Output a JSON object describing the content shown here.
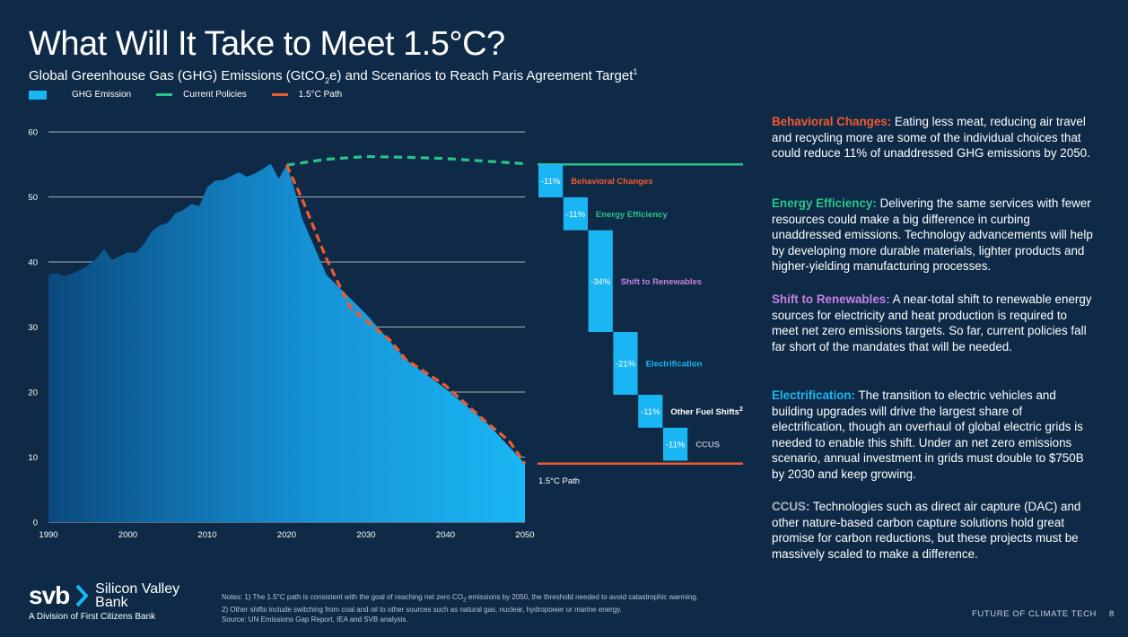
{
  "title": "What Will It Take to Meet 1.5°C?",
  "subtitle": {
    "pre": "Global Greenhouse Gas (GHG) Emissions (GtCO",
    "sub": "2",
    "post": "e) and Scenarios to Reach Paris Agreement Target",
    "sup": "1"
  },
  "legend": {
    "ghg": "GHG Emission",
    "current": "Current Policies",
    "path": "1.5°C Path"
  },
  "colors": {
    "background": "#0e2a47",
    "ghg_light": "#1ab6f4",
    "ghg_dark": "#0b4a7e",
    "current_policies": "#2ac48a",
    "path_15": "#f15a2e",
    "behavioral": "#f15a2e",
    "efficiency": "#2ac48a",
    "renewables": "#c880e0",
    "electrification": "#1ab6f4",
    "other": "#ffffff",
    "ccus": "#aab4c2"
  },
  "chart_data": {
    "type": "area",
    "xlim": [
      1990,
      2050
    ],
    "ylim": [
      0,
      60
    ],
    "x_ticks": [
      "1990",
      "2000",
      "2010",
      "2020",
      "2030",
      "2040",
      "2050"
    ],
    "y_ticks": [
      "0",
      "10",
      "20",
      "30",
      "40",
      "50",
      "60"
    ],
    "grid": true,
    "legend_position": "top-left",
    "series": [
      {
        "name": "GHG Emission",
        "x": [
          1990,
          1991,
          1992,
          1993,
          1994,
          1995,
          1996,
          1997,
          1998,
          1999,
          2000,
          2001,
          2002,
          2003,
          2004,
          2005,
          2006,
          2007,
          2008,
          2009,
          2010,
          2011,
          2012,
          2013,
          2014,
          2015,
          2016,
          2017,
          2018,
          2019,
          2020,
          2021,
          2022,
          2025,
          2030,
          2035,
          2040,
          2045,
          2050
        ],
        "y": [
          38,
          38.3,
          37.8,
          38.2,
          38.8,
          39.5,
          40.5,
          42,
          40.3,
          40.9,
          41.5,
          41.4,
          42.7,
          44.7,
          45.6,
          46,
          47.5,
          48,
          48.9,
          48.6,
          51.5,
          52.5,
          52.6,
          53.2,
          53.8,
          53.1,
          53.6,
          54.3,
          55.1,
          52.8,
          54.9,
          51,
          46.5,
          38,
          32,
          25,
          20.5,
          15.5,
          9
        ],
        "color": "#1ab6f4"
      },
      {
        "name": "Current Policies",
        "x": [
          2020,
          2025,
          2030,
          2035,
          2040,
          2045,
          2050
        ],
        "y": [
          54.9,
          55.8,
          56.2,
          56.1,
          55.9,
          55.5,
          55.1
        ]
      },
      {
        "name": "1.5°C Path",
        "x": [
          2020,
          2022,
          2025,
          2028,
          2030,
          2033,
          2035,
          2040,
          2045,
          2048,
          2050
        ],
        "y": [
          54.9,
          49.5,
          40.5,
          33,
          31,
          28,
          25,
          21,
          15.5,
          12.5,
          9
        ]
      }
    ],
    "waterfall": {
      "start": 55,
      "end": 9,
      "end_label": "1.5°C Path",
      "steps": [
        {
          "label": "Behavioral Changes",
          "pct": "-11%",
          "value": 5.06,
          "color_key": "behavioral"
        },
        {
          "label": "Energy Efficiency",
          "pct": "-11%",
          "value": 5.06,
          "color_key": "efficiency"
        },
        {
          "label": "Shift to Renewables",
          "pct": "-34%",
          "value": 15.64,
          "color_key": "renewables"
        },
        {
          "label": "Electrification",
          "pct": "-21%",
          "value": 9.66,
          "color_key": "electrification"
        },
        {
          "label": "Other Fuel Shifts",
          "label_sup": "2",
          "pct": "-11%",
          "value": 5.06,
          "color_key": "other"
        },
        {
          "label": "CCUS",
          "pct": "-11%",
          "value": 5.06,
          "color_key": "ccus"
        }
      ]
    }
  },
  "descriptions": [
    {
      "heading": "Behavioral Changes:",
      "color_key": "behavioral",
      "text": " Eating less meat, reducing air travel and recycling more are some of the individual choices that could reduce 11% of unaddressed GHG emissions by 2050."
    },
    {
      "heading": "Energy Efficiency:",
      "color_key": "efficiency",
      "text": " Delivering the same services with fewer resources could make a big difference in curbing unaddressed emissions. Technology advancements will help by developing more durable materials, lighter products and higher-yielding manufacturing processes."
    },
    {
      "heading": "Shift to Renewables:",
      "color_key": "renewables",
      "text": " A near-total shift to renewable energy sources for electricity and heat production is required to meet net zero emissions targets. So far, current policies fall far short of the mandates that will be needed."
    },
    {
      "heading": "Electrification:",
      "color_key": "electrification",
      "text": " The transition to electric vehicles and building upgrades will drive the largest share of electrification, though an overhaul of global electric grids is needed to enable this shift. Under an net zero emissions scenario, annual investment in grids must double to $750B by 2030 and keep growing."
    },
    {
      "heading": "CCUS:",
      "color_key": "ccus",
      "text": " Technologies such as direct air capture (DAC) and other nature-based carbon capture solutions hold great promise for carbon reductions, but these projects must be massively scaled to make a difference."
    }
  ],
  "logo": {
    "mark": "svb",
    "name_line1": "Silicon Valley",
    "name_line2": "Bank",
    "division": "A Division of First Citizens Bank"
  },
  "notes": {
    "line1_pre": "Notes: 1) The 1.5°C path is consistent with the goal of reaching net zero CO",
    "line1_sub": "2",
    "line1_post": " emissions by 2050, the threshold needed to avoid catastrophic warming.",
    "line2": "2) Other shifts include switching from coal and oil to other sources such as natural gas, nuclear, hydropower or marine energy.",
    "line3": "Source: UN Emissions Gap Report, IEA and SVB analysis."
  },
  "footer": {
    "section": "FUTURE OF CLIMATE TECH",
    "page": "8"
  }
}
